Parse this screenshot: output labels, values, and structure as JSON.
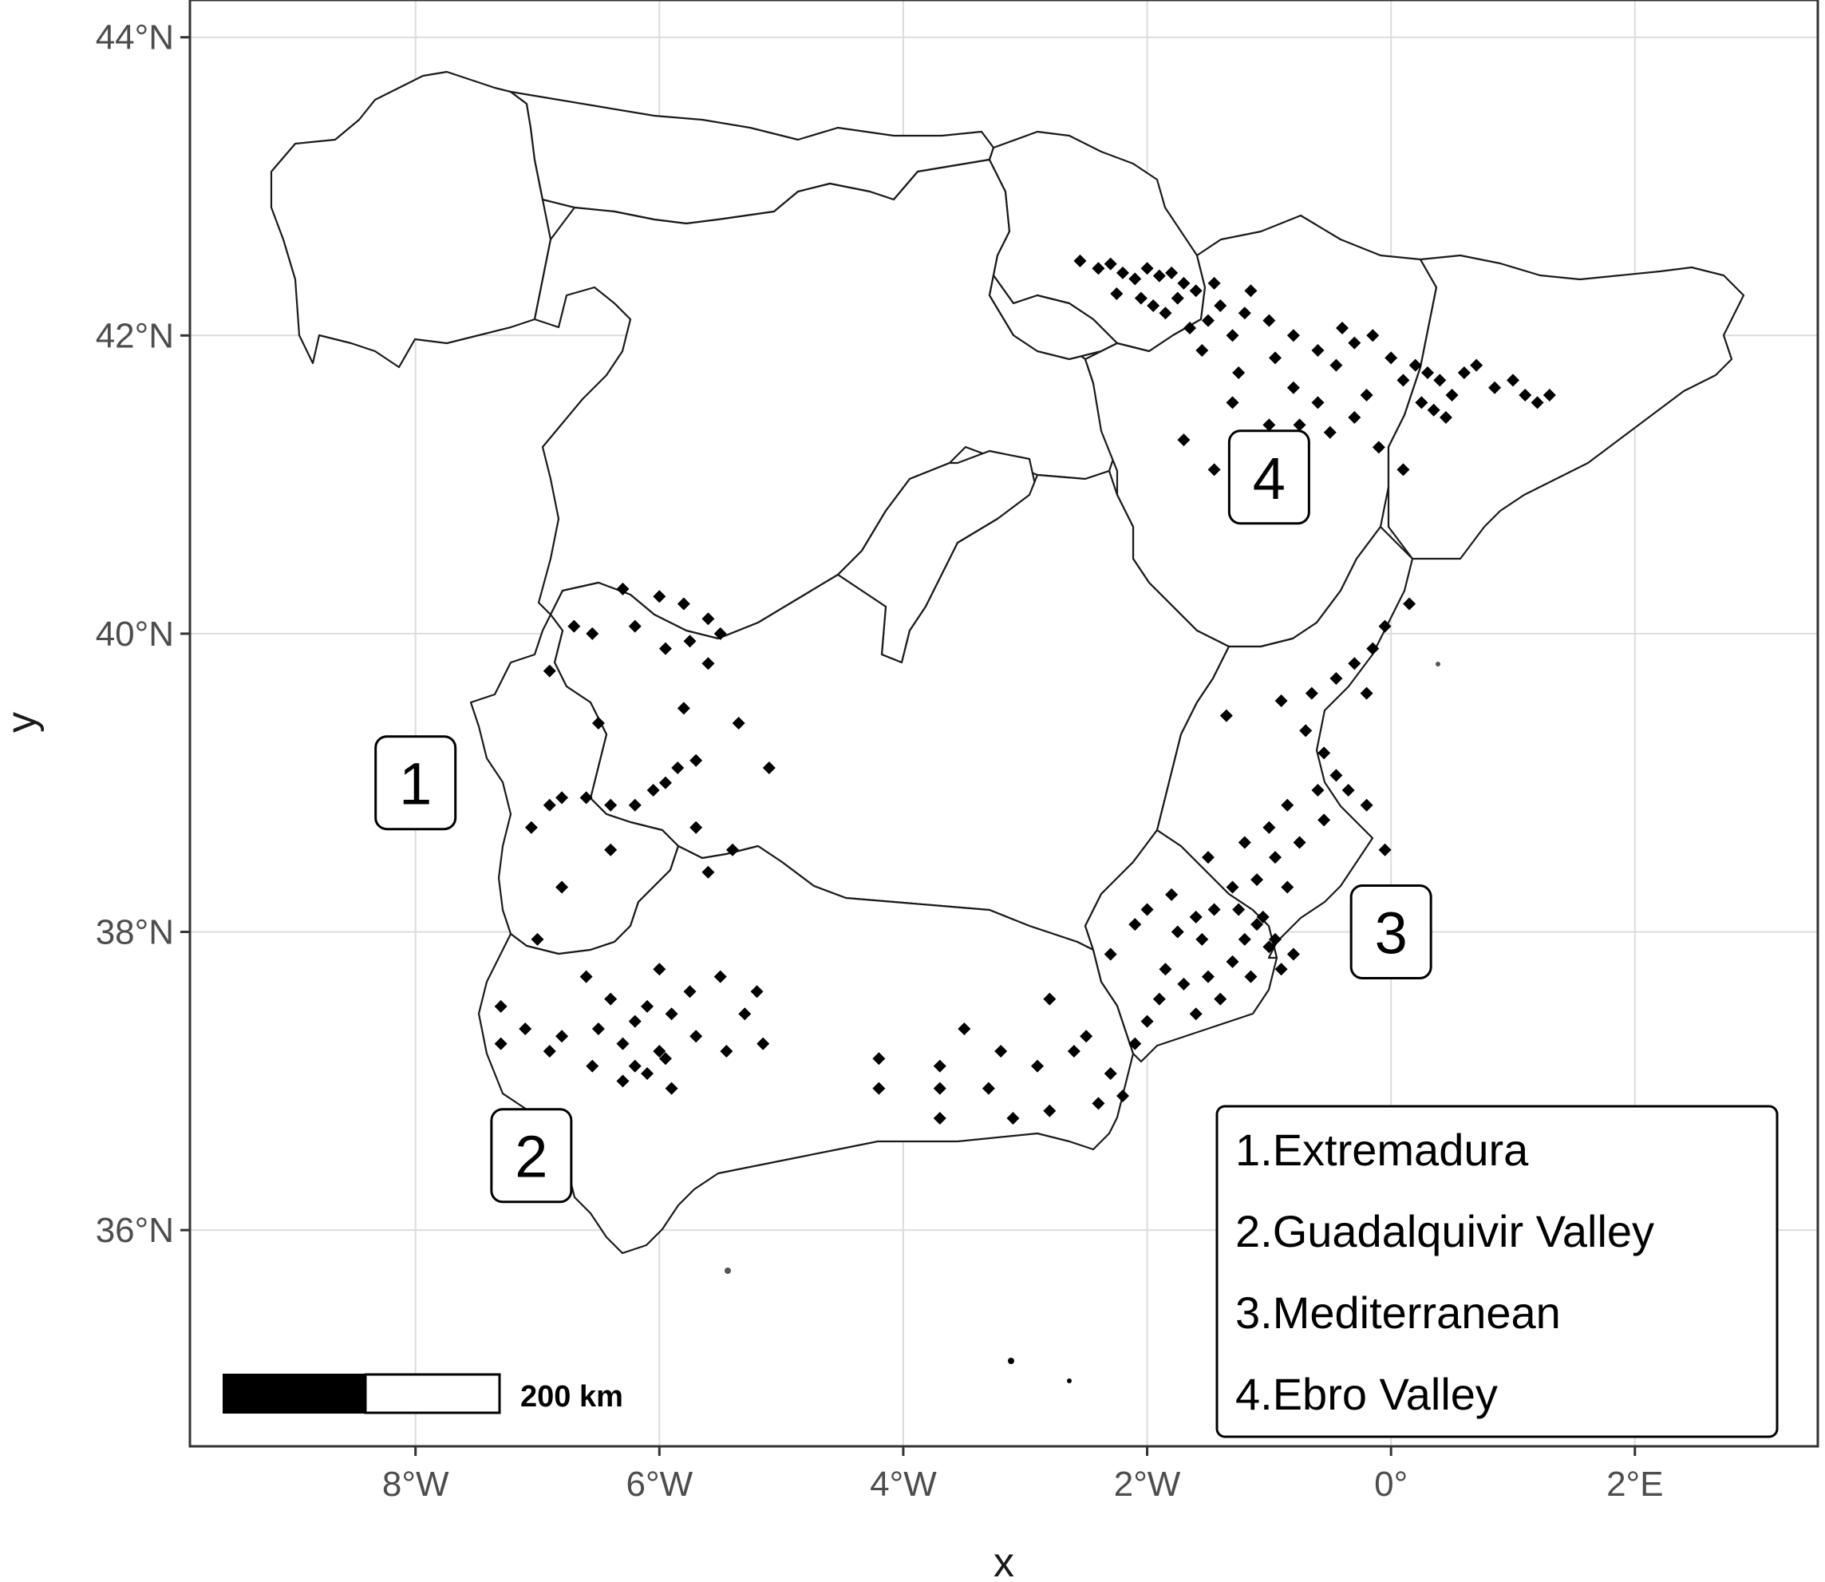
{
  "axes": {
    "x_title": "x",
    "y_title": "y",
    "x_ticks": [
      {
        "lon": -8,
        "label": "8°W"
      },
      {
        "lon": -6,
        "label": "6°W"
      },
      {
        "lon": -4,
        "label": "4°W"
      },
      {
        "lon": -2,
        "label": "2°W"
      },
      {
        "lon": 0,
        "label": "0°"
      },
      {
        "lon": 2,
        "label": "2°E"
      }
    ],
    "y_ticks": [
      {
        "lat": 44,
        "label": "44°N"
      },
      {
        "lat": 42,
        "label": "42°N"
      },
      {
        "lat": 40,
        "label": "40°N"
      },
      {
        "lat": 38,
        "label": "38°N"
      },
      {
        "lat": 36,
        "label": "36°N"
      }
    ],
    "lon_range": [
      -9.85,
      3.5
    ],
    "lat_range": [
      34.55,
      44.25
    ]
  },
  "zones": [
    {
      "id": "1",
      "label": "1",
      "lon": -8.0,
      "lat": 39.0
    },
    {
      "id": "2",
      "label": "2",
      "lon": -7.05,
      "lat": 36.5
    },
    {
      "id": "3",
      "label": "3",
      "lon": 0.0,
      "lat": 38.0
    },
    {
      "id": "4",
      "label": "4",
      "lon": -1.0,
      "lat": 41.05
    }
  ],
  "legend": {
    "items": [
      "1.Extremadura",
      "2.Guadalquivir Valley",
      "3.Mediterranean",
      "4.Ebro Valley"
    ]
  },
  "scale_bar": {
    "label": "200 km"
  },
  "points": {
    "ebro": [
      [
        -2.55,
        42.5
      ],
      [
        -2.4,
        42.45
      ],
      [
        -2.3,
        42.48
      ],
      [
        -2.2,
        42.42
      ],
      [
        -2.1,
        42.38
      ],
      [
        -2.0,
        42.45
      ],
      [
        -1.9,
        42.4
      ],
      [
        -1.8,
        42.42
      ],
      [
        -1.7,
        42.35
      ],
      [
        -2.05,
        42.25
      ],
      [
        -1.95,
        42.2
      ],
      [
        -1.85,
        42.15
      ],
      [
        -1.75,
        42.25
      ],
      [
        -1.6,
        42.3
      ],
      [
        -1.5,
        42.1
      ],
      [
        -1.4,
        42.2
      ],
      [
        -1.3,
        42.0
      ],
      [
        -1.2,
        42.15
      ],
      [
        -1.0,
        42.1
      ],
      [
        -0.8,
        42.0
      ],
      [
        -0.6,
        41.9
      ],
      [
        -0.4,
        42.05
      ],
      [
        -0.3,
        41.95
      ],
      [
        -0.15,
        42.0
      ],
      [
        0.0,
        41.85
      ],
      [
        0.1,
        41.7
      ],
      [
        0.2,
        41.8
      ],
      [
        0.3,
        41.75
      ],
      [
        0.4,
        41.7
      ],
      [
        0.5,
        41.6
      ],
      [
        0.6,
        41.75
      ],
      [
        0.7,
        41.8
      ],
      [
        0.85,
        41.65
      ],
      [
        1.0,
        41.7
      ],
      [
        1.1,
        41.6
      ],
      [
        1.2,
        41.55
      ],
      [
        1.3,
        41.6
      ],
      [
        0.35,
        41.5
      ],
      [
        0.45,
        41.45
      ],
      [
        -1.3,
        41.55
      ],
      [
        -1.0,
        41.4
      ],
      [
        -0.8,
        41.65
      ],
      [
        -0.6,
        41.55
      ],
      [
        -0.5,
        41.35
      ],
      [
        -0.3,
        41.45
      ],
      [
        -0.1,
        41.25
      ],
      [
        0.1,
        41.1
      ],
      [
        -1.7,
        41.3
      ],
      [
        -1.45,
        41.1
      ],
      [
        -1.15,
        41.25
      ],
      [
        -0.75,
        41.4
      ],
      [
        -1.55,
        41.9
      ],
      [
        -1.25,
        41.75
      ],
      [
        -0.95,
        41.85
      ],
      [
        -1.15,
        42.3
      ],
      [
        -1.45,
        42.35
      ],
      [
        -2.25,
        42.28
      ],
      [
        -1.65,
        42.05
      ],
      [
        -0.2,
        41.6
      ],
      [
        -0.45,
        41.8
      ],
      [
        0.25,
        41.55
      ]
    ],
    "mediterranean": [
      [
        0.15,
        40.2
      ],
      [
        -0.05,
        40.05
      ],
      [
        -0.15,
        39.9
      ],
      [
        -0.3,
        39.8
      ],
      [
        -0.2,
        39.6
      ],
      [
        -0.45,
        39.7
      ],
      [
        -0.65,
        39.6
      ],
      [
        -0.9,
        39.55
      ],
      [
        -1.35,
        39.45
      ],
      [
        -0.7,
        39.35
      ],
      [
        -0.55,
        39.2
      ],
      [
        -0.45,
        39.05
      ],
      [
        -0.6,
        38.95
      ],
      [
        -0.35,
        38.95
      ],
      [
        -0.2,
        38.85
      ],
      [
        -0.55,
        38.75
      ],
      [
        -0.75,
        38.6
      ],
      [
        -0.95,
        38.5
      ],
      [
        -1.1,
        38.35
      ],
      [
        -0.85,
        38.3
      ],
      [
        -1.3,
        38.3
      ],
      [
        -1.45,
        38.15
      ],
      [
        -1.6,
        38.1
      ],
      [
        -1.75,
        38.0
      ],
      [
        -1.55,
        37.95
      ],
      [
        -1.85,
        37.75
      ],
      [
        -1.7,
        37.65
      ],
      [
        -1.9,
        37.55
      ],
      [
        -2.0,
        37.4
      ],
      [
        -1.5,
        37.7
      ],
      [
        -1.3,
        37.8
      ],
      [
        -1.2,
        37.95
      ],
      [
        -1.1,
        38.05
      ],
      [
        -1.0,
        37.9
      ],
      [
        -0.9,
        37.75
      ],
      [
        -0.8,
        37.85
      ],
      [
        -1.4,
        37.55
      ],
      [
        -1.6,
        37.45
      ],
      [
        -1.15,
        37.7
      ],
      [
        -2.1,
        37.25
      ],
      [
        -2.3,
        37.85
      ],
      [
        -2.1,
        38.05
      ],
      [
        -2.0,
        38.15
      ],
      [
        -1.8,
        38.25
      ],
      [
        -1.5,
        38.5
      ],
      [
        -1.2,
        38.6
      ],
      [
        -1.0,
        38.7
      ],
      [
        -0.85,
        38.85
      ],
      [
        -1.05,
        38.1
      ],
      [
        -1.25,
        38.15
      ],
      [
        -0.95,
        37.95
      ],
      [
        -0.05,
        38.55
      ]
    ],
    "extremadura": [
      [
        -6.3,
        40.3
      ],
      [
        -6.0,
        40.25
      ],
      [
        -5.8,
        40.2
      ],
      [
        -5.6,
        40.1
      ],
      [
        -6.2,
        40.05
      ],
      [
        -6.7,
        40.05
      ],
      [
        -6.55,
        40.0
      ],
      [
        -5.75,
        39.95
      ],
      [
        -5.5,
        40.0
      ],
      [
        -5.95,
        39.9
      ],
      [
        -6.9,
        39.75
      ],
      [
        -5.6,
        39.8
      ],
      [
        -5.8,
        39.5
      ],
      [
        -5.35,
        39.4
      ],
      [
        -6.5,
        39.4
      ],
      [
        -5.7,
        39.15
      ],
      [
        -5.85,
        39.1
      ],
      [
        -5.95,
        39.0
      ],
      [
        -6.05,
        38.95
      ],
      [
        -5.1,
        39.1
      ],
      [
        -6.8,
        38.9
      ],
      [
        -6.6,
        38.9
      ],
      [
        -6.4,
        38.85
      ],
      [
        -6.2,
        38.85
      ],
      [
        -6.9,
        38.85
      ],
      [
        -7.05,
        38.7
      ],
      [
        -5.7,
        38.7
      ],
      [
        -6.4,
        38.55
      ],
      [
        -5.4,
        38.55
      ],
      [
        -5.6,
        38.4
      ],
      [
        -6.8,
        38.3
      ]
    ],
    "guadalquivir": [
      [
        -7.0,
        37.95
      ],
      [
        -6.6,
        37.7
      ],
      [
        -6.0,
        37.75
      ],
      [
        -5.75,
        37.6
      ],
      [
        -5.5,
        37.7
      ],
      [
        -5.2,
        37.6
      ],
      [
        -7.3,
        37.5
      ],
      [
        -6.4,
        37.55
      ],
      [
        -6.1,
        37.5
      ],
      [
        -5.9,
        37.45
      ],
      [
        -5.3,
        37.45
      ],
      [
        -7.1,
        37.35
      ],
      [
        -6.8,
        37.3
      ],
      [
        -6.5,
        37.35
      ],
      [
        -6.2,
        37.4
      ],
      [
        -5.7,
        37.3
      ],
      [
        -7.3,
        37.25
      ],
      [
        -6.9,
        37.2
      ],
      [
        -6.3,
        37.25
      ],
      [
        -6.0,
        37.2
      ],
      [
        -5.45,
        37.2
      ],
      [
        -5.15,
        37.25
      ],
      [
        -6.55,
        37.1
      ],
      [
        -6.2,
        37.1
      ],
      [
        -5.95,
        37.15
      ],
      [
        -6.1,
        37.05
      ],
      [
        -5.9,
        36.95
      ],
      [
        -4.2,
        37.15
      ],
      [
        -3.7,
        37.1
      ],
      [
        -3.2,
        37.2
      ],
      [
        -2.9,
        37.1
      ],
      [
        -2.6,
        37.2
      ],
      [
        -3.5,
        37.35
      ],
      [
        -2.5,
        37.3
      ],
      [
        -2.8,
        37.55
      ],
      [
        -3.3,
        36.95
      ],
      [
        -3.7,
        36.95
      ],
      [
        -4.2,
        36.95
      ],
      [
        -2.3,
        37.05
      ],
      [
        -2.2,
        36.9
      ],
      [
        -2.4,
        36.85
      ],
      [
        -2.8,
        36.8
      ],
      [
        -3.1,
        36.75
      ],
      [
        -3.7,
        36.75
      ],
      [
        -6.3,
        37.0
      ]
    ]
  }
}
